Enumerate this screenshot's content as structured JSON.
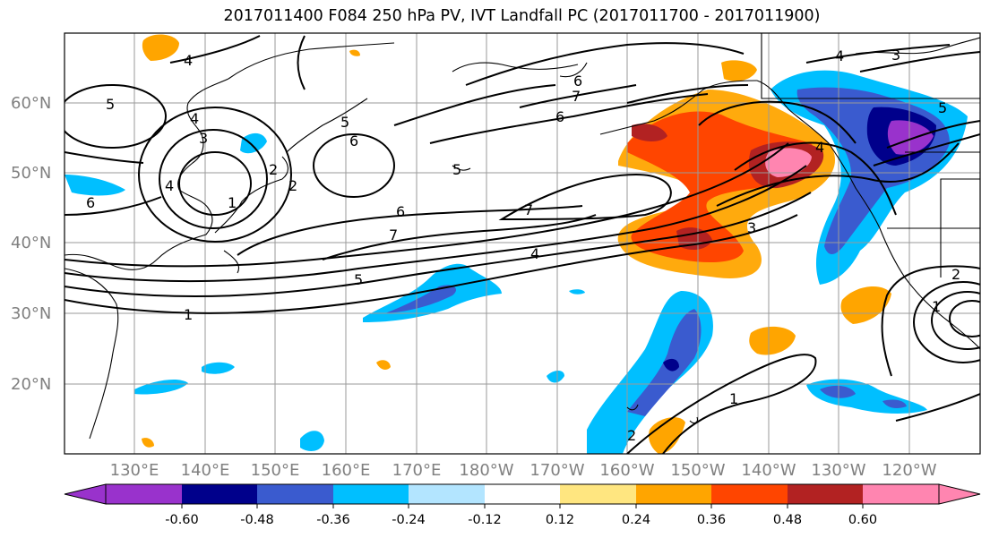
{
  "title": "2017011400 F084 250 hPa PV, IVT Landfall PC (2017011700 - 2017011900)",
  "lat_labels": [
    "60°N",
    "50°N",
    "40°N",
    "30°N",
    "20°N"
  ],
  "lon_labels": [
    "130°E",
    "140°E",
    "150°E",
    "160°E",
    "170°E",
    "180°W",
    "170°W",
    "160°W",
    "150°W",
    "140°W",
    "130°W",
    "120°W"
  ],
  "colorbar": {
    "colors": [
      "#9932cc",
      "#00008b",
      "#3a5bcf",
      "#00bfff",
      "#b3e5ff",
      "#ffffff",
      "#ffe680",
      "#ffa500",
      "#ff4500",
      "#b22222",
      "#ff85b0"
    ],
    "tick_labels": [
      "-0.60",
      "-0.48",
      "-0.36",
      "-0.24",
      "-0.12",
      "0.12",
      "0.24",
      "0.36",
      "0.48",
      "0.60"
    ]
  },
  "contour_labels": [
    "4",
    "5",
    "4",
    "3",
    "2",
    "6",
    "5",
    "2",
    "1",
    "6",
    "4",
    "5",
    "6",
    "7",
    "6",
    "7",
    "4",
    "3",
    "4",
    "5",
    "1",
    "6",
    "7",
    "4",
    "3",
    "5",
    "1",
    "2",
    "1",
    "2"
  ],
  "legend": {
    "pv_field": "250 hPa PV",
    "shading": "IVT Landfall PC"
  }
}
